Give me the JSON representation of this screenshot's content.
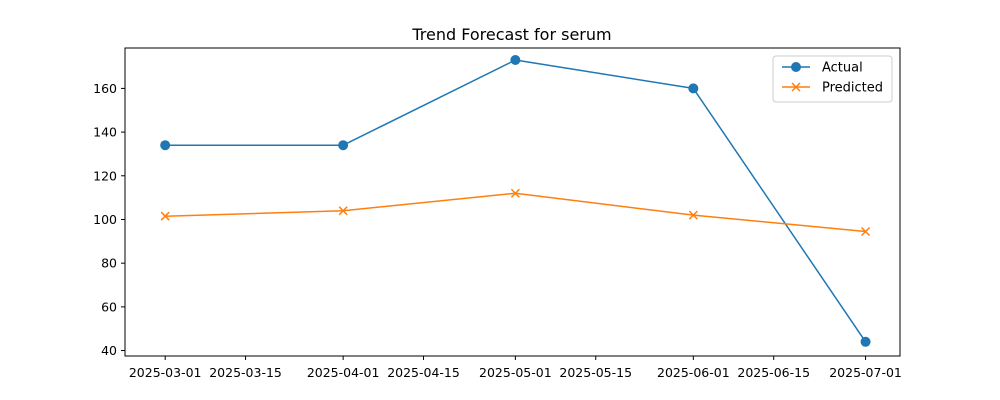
{
  "chart_data": {
    "type": "line",
    "title": "Trend Forecast for serum",
    "xlabel": "",
    "ylabel": "",
    "x_type": "date",
    "xlim": [
      "2025-02-22",
      "2025-07-07"
    ],
    "ylim": [
      37.5,
      178.5
    ],
    "x_ticks": [
      "2025-03-01",
      "2025-03-15",
      "2025-04-01",
      "2025-04-15",
      "2025-05-01",
      "2025-05-15",
      "2025-06-01",
      "2025-06-15",
      "2025-07-01"
    ],
    "y_ticks": [
      40,
      60,
      80,
      100,
      120,
      140,
      160
    ],
    "grid": false,
    "legend_position": "top-right",
    "series": [
      {
        "name": "Actual",
        "color": "#1f77b4",
        "marker": "circle",
        "x": [
          "2025-03-01",
          "2025-04-01",
          "2025-05-01",
          "2025-06-01",
          "2025-07-01"
        ],
        "values": [
          134,
          134,
          173,
          160,
          44
        ]
      },
      {
        "name": "Predicted",
        "color": "#ff7f0e",
        "marker": "x",
        "x": [
          "2025-03-01",
          "2025-04-01",
          "2025-05-01",
          "2025-06-01",
          "2025-07-01"
        ],
        "values": [
          101.5,
          104,
          112,
          102,
          94.5
        ]
      }
    ]
  }
}
